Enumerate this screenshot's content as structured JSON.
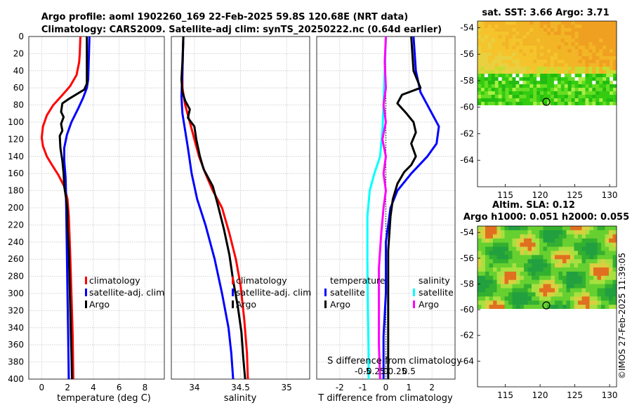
{
  "title_line1": "Argo profile: aoml 1902260_169 22-Feb-2025 59.8S 120.68E (NRT data)",
  "title_line2": "Climatology: CARS2009. Satellite-adj clim: synTS_20250222.nc (0.64d earlier)",
  "colors": {
    "climatology": "#ff0000",
    "satellite": "#0000ff",
    "argo": "#000000",
    "sat_salinity": "#00ffff",
    "argo_salinity": "#ff00ff"
  },
  "chart_data": [
    {
      "type": "line",
      "name": "temperature",
      "xlabel": "temperature (deg C)",
      "xlim": [
        -1,
        9.5
      ],
      "xticks": [
        0,
        2,
        4,
        6,
        8
      ],
      "ylim": [
        0,
        400
      ],
      "yticks": [
        0,
        20,
        40,
        60,
        80,
        100,
        120,
        140,
        160,
        180,
        200,
        220,
        240,
        260,
        280,
        300,
        320,
        340,
        360,
        380,
        400
      ],
      "legend": [
        "climatology",
        "satellite-adj. clim",
        "Argo"
      ],
      "series": [
        {
          "name": "climatology",
          "color": "#ff0000",
          "points": [
            [
              3.0,
              0
            ],
            [
              2.95,
              20
            ],
            [
              2.9,
              30
            ],
            [
              2.7,
              45
            ],
            [
              2.2,
              58
            ],
            [
              1.5,
              70
            ],
            [
              0.9,
              80
            ],
            [
              0.4,
              92
            ],
            [
              0.1,
              105
            ],
            [
              0.0,
              118
            ],
            [
              0.1,
              128
            ],
            [
              0.4,
              140
            ],
            [
              0.8,
              150
            ],
            [
              1.3,
              162
            ],
            [
              1.75,
              175
            ],
            [
              2.0,
              190
            ],
            [
              2.1,
              210
            ],
            [
              2.2,
              250
            ],
            [
              2.3,
              300
            ],
            [
              2.4,
              350
            ],
            [
              2.45,
              400
            ]
          ]
        },
        {
          "name": "satellite-adj. clim",
          "color": "#0000ff",
          "points": [
            [
              3.7,
              0
            ],
            [
              3.6,
              50
            ],
            [
              3.5,
              60
            ],
            [
              3.2,
              72
            ],
            [
              2.8,
              85
            ],
            [
              2.3,
              100
            ],
            [
              1.95,
              115
            ],
            [
              1.75,
              130
            ],
            [
              1.75,
              145
            ],
            [
              1.85,
              165
            ],
            [
              1.9,
              200
            ],
            [
              1.95,
              250
            ],
            [
              2.0,
              300
            ],
            [
              2.05,
              350
            ],
            [
              2.1,
              400
            ]
          ]
        },
        {
          "name": "Argo",
          "color": "#000000",
          "points": [
            [
              3.5,
              0
            ],
            [
              3.5,
              40
            ],
            [
              3.5,
              55
            ],
            [
              3.3,
              62
            ],
            [
              2.2,
              72
            ],
            [
              1.6,
              78
            ],
            [
              1.5,
              88
            ],
            [
              1.7,
              94
            ],
            [
              1.5,
              102
            ],
            [
              1.6,
              110
            ],
            [
              1.4,
              116
            ],
            [
              1.45,
              130
            ],
            [
              1.6,
              145
            ],
            [
              1.7,
              160
            ],
            [
              1.75,
              175
            ],
            [
              1.9,
              190
            ],
            [
              2.0,
              205
            ],
            [
              2.0,
              220
            ],
            [
              2.1,
              250
            ],
            [
              2.15,
              280
            ],
            [
              2.2,
              310
            ],
            [
              2.25,
              340
            ],
            [
              2.3,
              370
            ],
            [
              2.35,
              400
            ]
          ]
        }
      ]
    },
    {
      "type": "line",
      "name": "salinity",
      "xlabel": "salinity",
      "xlim": [
        33.75,
        35.25
      ],
      "xticks": [
        34,
        34.5,
        35
      ],
      "ylim": [
        0,
        400
      ],
      "legend": [
        "climatology",
        "satellite-adj. clim",
        "Argo"
      ],
      "series": [
        {
          "name": "climatology",
          "color": "#ff0000",
          "points": [
            [
              33.88,
              0
            ],
            [
              33.87,
              40
            ],
            [
              33.87,
              60
            ],
            [
              33.9,
              80
            ],
            [
              33.95,
              100
            ],
            [
              34.0,
              120
            ],
            [
              34.05,
              140
            ],
            [
              34.12,
              160
            ],
            [
              34.2,
              180
            ],
            [
              34.3,
              200
            ],
            [
              34.38,
              230
            ],
            [
              34.45,
              260
            ],
            [
              34.5,
              290
            ],
            [
              34.54,
              330
            ],
            [
              34.57,
              370
            ],
            [
              34.58,
              400
            ]
          ]
        },
        {
          "name": "satellite-adj. clim",
          "color": "#0000ff",
          "points": [
            [
              33.88,
              0
            ],
            [
              33.87,
              40
            ],
            [
              33.86,
              70
            ],
            [
              33.87,
              90
            ],
            [
              33.9,
              110
            ],
            [
              33.93,
              130
            ],
            [
              33.97,
              160
            ],
            [
              34.03,
              190
            ],
            [
              34.12,
              220
            ],
            [
              34.22,
              260
            ],
            [
              34.3,
              300
            ],
            [
              34.37,
              340
            ],
            [
              34.4,
              370
            ],
            [
              34.42,
              400
            ]
          ]
        },
        {
          "name": "Argo",
          "color": "#000000",
          "points": [
            [
              33.88,
              0
            ],
            [
              33.87,
              30
            ],
            [
              33.86,
              50
            ],
            [
              33.87,
              65
            ],
            [
              33.9,
              75
            ],
            [
              33.95,
              85
            ],
            [
              33.93,
              95
            ],
            [
              34.0,
              105
            ],
            [
              34.02,
              120
            ],
            [
              34.06,
              140
            ],
            [
              34.1,
              155
            ],
            [
              34.2,
              175
            ],
            [
              34.25,
              195
            ],
            [
              34.32,
              225
            ],
            [
              34.38,
              255
            ],
            [
              34.42,
              285
            ],
            [
              34.47,
              315
            ],
            [
              34.51,
              345
            ],
            [
              34.53,
              375
            ],
            [
              34.55,
              400
            ]
          ]
        }
      ]
    },
    {
      "type": "line",
      "name": "difference from climatology",
      "xlabel": "T difference from climatology",
      "xlim": [
        -3,
        3
      ],
      "xticks": [
        -2,
        -1,
        0,
        1,
        2
      ],
      "top_axis_label": "S difference from climatology",
      "top_ticks": [
        "-0.5",
        "-0.25",
        "0",
        "0.25",
        "0.5"
      ],
      "ylim": [
        0,
        400
      ],
      "legend_t_title": "temperature",
      "legend_s_title": "salinity",
      "legend": [
        "satellite",
        "Argo",
        "satellite",
        "Argo"
      ],
      "series": [
        {
          "name": "T satellite",
          "color": "#0000ff",
          "points": [
            [
              1.2,
              0
            ],
            [
              1.3,
              40
            ],
            [
              1.5,
              65
            ],
            [
              1.9,
              85
            ],
            [
              2.3,
              105
            ],
            [
              2.2,
              125
            ],
            [
              1.8,
              140
            ],
            [
              1.1,
              160
            ],
            [
              0.5,
              180
            ],
            [
              0.2,
              200
            ],
            [
              0.0,
              240
            ],
            [
              0.0,
              300
            ],
            [
              -0.1,
              350
            ],
            [
              -0.1,
              400
            ]
          ]
        },
        {
          "name": "T Argo",
          "color": "#000000",
          "points": [
            [
              1.1,
              0
            ],
            [
              1.2,
              40
            ],
            [
              1.5,
              60
            ],
            [
              0.7,
              68
            ],
            [
              0.5,
              78
            ],
            [
              0.9,
              90
            ],
            [
              1.2,
              100
            ],
            [
              1.3,
              112
            ],
            [
              1.1,
              125
            ],
            [
              1.3,
              140
            ],
            [
              1.1,
              150
            ],
            [
              0.8,
              158
            ],
            [
              0.5,
              172
            ],
            [
              0.3,
              190
            ],
            [
              0.2,
              210
            ],
            [
              0.1,
              250
            ],
            [
              0.1,
              300
            ],
            [
              0.1,
              350
            ],
            [
              0.1,
              400
            ]
          ]
        },
        {
          "name": "S satellite",
          "color": "#00ffff",
          "points": [
            [
              0.0,
              0
            ],
            [
              -0.05,
              40
            ],
            [
              -0.1,
              80
            ],
            [
              -0.15,
              110
            ],
            [
              -0.25,
              140
            ],
            [
              -0.5,
              160
            ],
            [
              -0.7,
              180
            ],
            [
              -0.8,
              210
            ],
            [
              -0.8,
              260
            ],
            [
              -0.78,
              320
            ],
            [
              -0.75,
              370
            ],
            [
              -0.75,
              400
            ]
          ]
        },
        {
          "name": "S Argo",
          "color": "#ff00ff",
          "points": [
            [
              0.0,
              0
            ],
            [
              -0.05,
              30
            ],
            [
              0.0,
              60
            ],
            [
              -0.1,
              80
            ],
            [
              0.0,
              100
            ],
            [
              -0.15,
              120
            ],
            [
              0.0,
              140
            ],
            [
              -0.1,
              160
            ],
            [
              0.0,
              180
            ],
            [
              -0.1,
              200
            ],
            [
              -0.2,
              230
            ],
            [
              -0.3,
              270
            ],
            [
              -0.3,
              310
            ],
            [
              -0.3,
              360
            ],
            [
              -0.25,
              400
            ]
          ]
        }
      ]
    },
    {
      "type": "heatmap",
      "name": "sat. SST",
      "title": "sat. SST: 3.66 Argo: 3.71",
      "xticks": [
        115,
        120,
        125,
        130
      ],
      "yticks": [
        "-54",
        "-56",
        "-58",
        "-60",
        "-62",
        "-64"
      ],
      "marker": [
        120.68,
        -59.8
      ]
    },
    {
      "type": "heatmap",
      "name": "Altim. SLA",
      "title_line1": "Altim. SLA: 0.12",
      "title_line2": "Argo h1000: 0.051 h2000: 0.055",
      "xticks": [
        115,
        120,
        125,
        130
      ],
      "yticks": [
        "-54",
        "-56",
        "-58",
        "-60",
        "-62",
        "-64"
      ],
      "marker": [
        120.68,
        -59.8
      ]
    }
  ],
  "watermark": "©IMOS 27-Feb-2025 11:39:05"
}
